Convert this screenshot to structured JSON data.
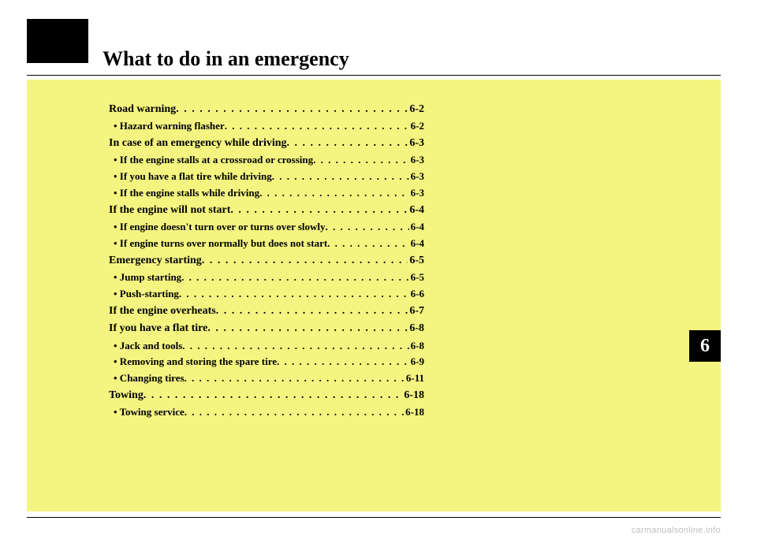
{
  "heading": "What to do in an emergency",
  "chapter_tab": "6",
  "watermark": "carmanualsonline.info",
  "colors": {
    "page_bg": "#ffffff",
    "highlight_bg": "#f4f481",
    "text": "#000000",
    "tab_bg": "#000000",
    "tab_text": "#ffffff",
    "watermark": "#bfbfbf"
  },
  "toc": [
    {
      "type": "section",
      "label": "Road warning",
      "page": "6-2"
    },
    {
      "type": "sub",
      "label": "• Hazard warning flasher",
      "page": "6-2"
    },
    {
      "type": "section",
      "label": "In case of an emergency while driving",
      "page": "6-3"
    },
    {
      "type": "sub",
      "label": "• If the engine stalls at a crossroad or crossing",
      "page": "6-3"
    },
    {
      "type": "sub",
      "label": "• If you have a flat tire while driving",
      "page": "6-3"
    },
    {
      "type": "sub",
      "label": "• If the engine stalls while driving",
      "page": "6-3"
    },
    {
      "type": "section",
      "label": "If the engine will not start",
      "page": "6-4"
    },
    {
      "type": "sub",
      "label": "• If engine doesn't turn over or turns over slowly",
      "page": "6-4"
    },
    {
      "type": "sub",
      "label": "• If engine turns over normally but does not start",
      "page": "6-4"
    },
    {
      "type": "section",
      "label": "Emergency starting",
      "page": "6-5"
    },
    {
      "type": "sub",
      "label": "• Jump starting",
      "page": "6-5"
    },
    {
      "type": "sub",
      "label": "• Push-starting",
      "page": "6-6"
    },
    {
      "type": "section",
      "label": "If the engine overheats",
      "page": "6-7"
    },
    {
      "type": "section",
      "label": "If you have a flat tire",
      "page": "6-8"
    },
    {
      "type": "sub",
      "label": "• Jack and tools",
      "page": "6-8"
    },
    {
      "type": "sub",
      "label": "• Removing and storing the spare tire",
      "page": "6-9"
    },
    {
      "type": "sub",
      "label": "• Changing tires",
      "page": "6-11"
    },
    {
      "type": "section",
      "label": "Towing",
      "page": "6-18"
    },
    {
      "type": "sub",
      "label": "• Towing service",
      "page": "6-18"
    }
  ]
}
